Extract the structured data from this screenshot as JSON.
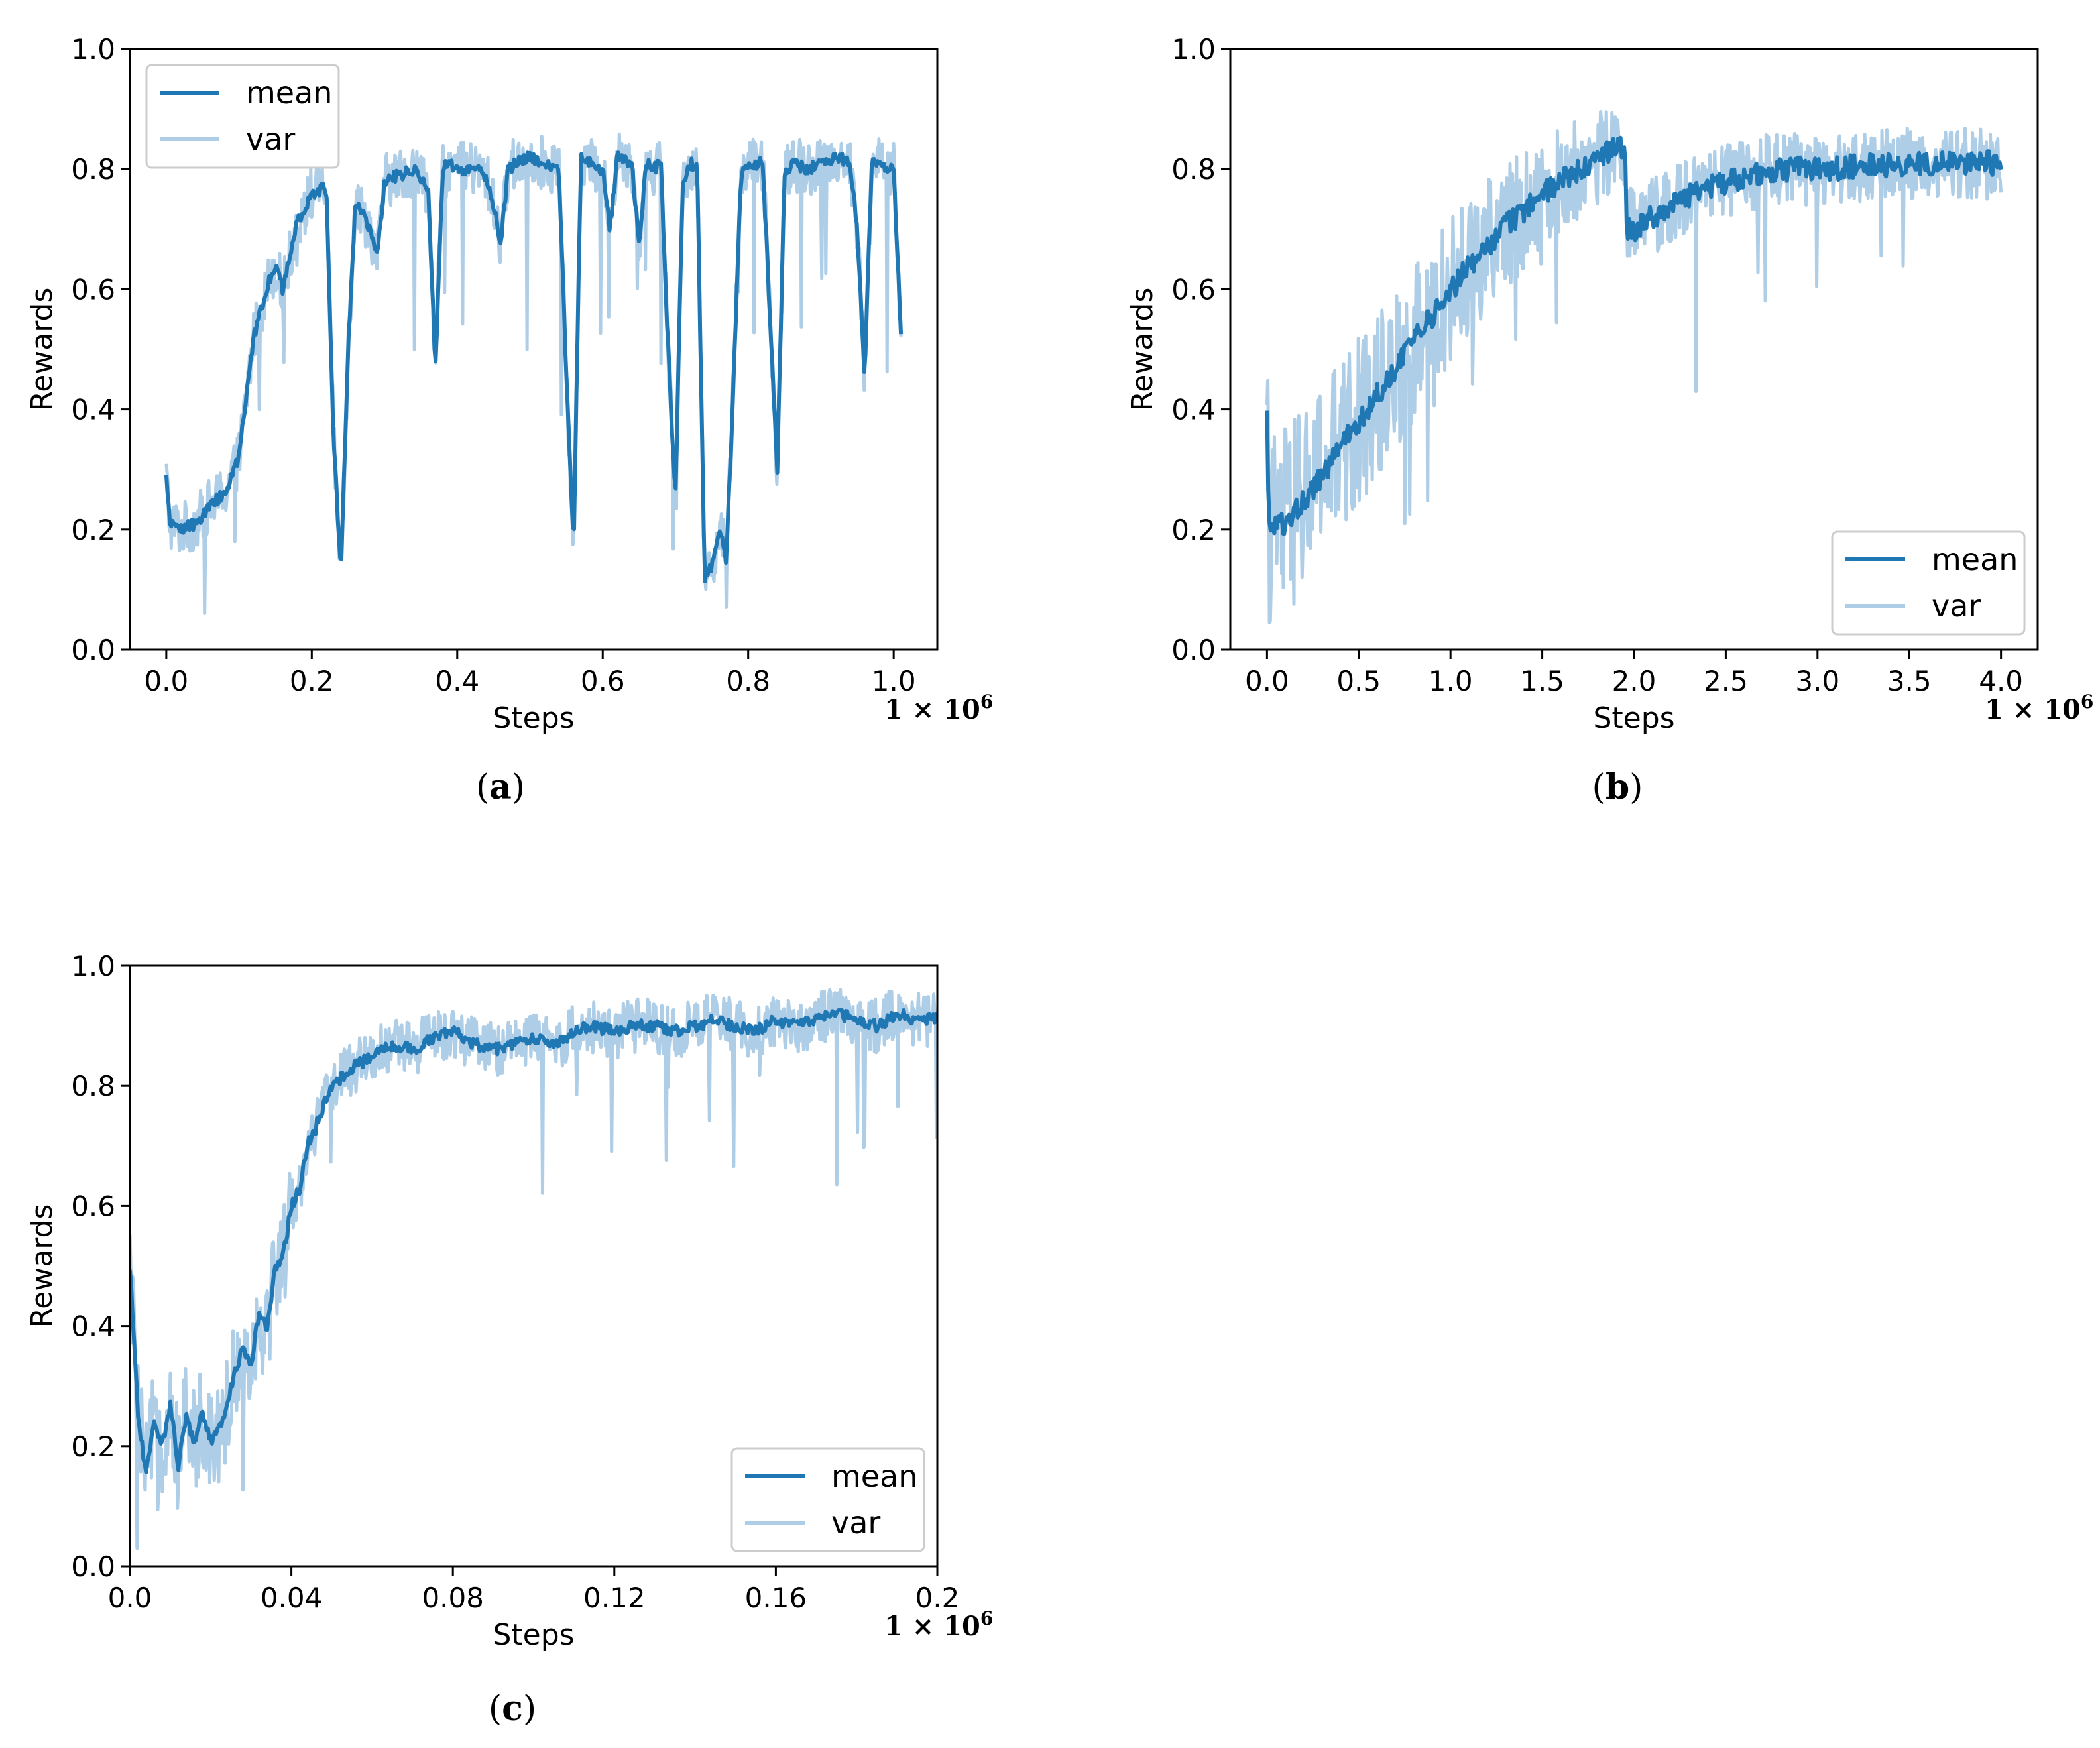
{
  "colors": {
    "mean": "#1f77b4",
    "var": "#aecde6",
    "axis": "#000000",
    "background": "#ffffff"
  },
  "chart_data": [
    {
      "id": "a",
      "type": "line",
      "caption": "a",
      "xlabel": "Steps",
      "ylabel": "Rewards",
      "x_multiplier": "1 × 10",
      "x_multiplier_exp": "6",
      "xlim": [
        -0.05,
        1.06
      ],
      "ylim": [
        0.0,
        1.0
      ],
      "xticks": [
        0.0,
        0.2,
        0.4,
        0.6,
        0.8,
        1.0
      ],
      "xtick_labels": [
        "0.0",
        "0.2",
        "0.4",
        "0.6",
        "0.8",
        "1.0"
      ],
      "yticks": [
        0.0,
        0.2,
        0.4,
        0.6,
        0.8,
        1.0
      ],
      "ytick_labels": [
        "0.0",
        "0.2",
        "0.4",
        "0.6",
        "0.8",
        "1.0"
      ],
      "legend": {
        "entries": [
          "mean",
          "var"
        ],
        "placement": "upper-left"
      },
      "series": [
        {
          "name": "mean",
          "x": [
            0.0,
            0.005,
            0.02,
            0.04,
            0.06,
            0.08,
            0.1,
            0.12,
            0.14,
            0.15,
            0.16,
            0.18,
            0.2,
            0.22,
            0.23,
            0.24,
            0.25,
            0.26,
            0.28,
            0.29,
            0.3,
            0.32,
            0.34,
            0.36,
            0.37,
            0.38,
            0.385,
            0.4,
            0.42,
            0.44,
            0.46,
            0.47,
            0.48,
            0.5,
            0.52,
            0.54,
            0.55,
            0.56,
            0.57,
            0.58,
            0.6,
            0.61,
            0.62,
            0.64,
            0.65,
            0.66,
            0.67,
            0.68,
            0.69,
            0.7,
            0.71,
            0.72,
            0.73,
            0.74,
            0.75,
            0.76,
            0.77,
            0.78,
            0.79,
            0.8,
            0.82,
            0.84,
            0.85,
            0.86,
            0.88,
            0.9,
            0.92,
            0.94,
            0.95,
            0.96,
            0.97,
            0.98,
            1.0,
            1.01
          ],
          "y": [
            0.29,
            0.21,
            0.2,
            0.21,
            0.24,
            0.26,
            0.32,
            0.52,
            0.61,
            0.64,
            0.6,
            0.71,
            0.76,
            0.77,
            0.35,
            0.13,
            0.5,
            0.75,
            0.7,
            0.65,
            0.78,
            0.79,
            0.8,
            0.77,
            0.47,
            0.8,
            0.81,
            0.8,
            0.8,
            0.79,
            0.68,
            0.8,
            0.81,
            0.82,
            0.81,
            0.8,
            0.45,
            0.17,
            0.82,
            0.81,
            0.8,
            0.7,
            0.82,
            0.81,
            0.67,
            0.81,
            0.8,
            0.81,
            0.5,
            0.25,
            0.78,
            0.81,
            0.8,
            0.12,
            0.14,
            0.2,
            0.15,
            0.45,
            0.79,
            0.81,
            0.81,
            0.3,
            0.79,
            0.81,
            0.8,
            0.81,
            0.82,
            0.81,
            0.7,
            0.46,
            0.81,
            0.81,
            0.8,
            0.53
          ]
        }
      ]
    },
    {
      "id": "b",
      "type": "line",
      "caption": "b",
      "xlabel": "Steps",
      "ylabel": "Rewards",
      "x_multiplier": "1 × 10",
      "x_multiplier_exp": "6",
      "xlim": [
        -0.2,
        4.2
      ],
      "ylim": [
        0.0,
        1.0
      ],
      "xticks": [
        0.0,
        0.5,
        1.0,
        1.5,
        2.0,
        2.5,
        3.0,
        3.5,
        4.0
      ],
      "xtick_labels": [
        "0.0",
        "0.5",
        "1.0",
        "1.5",
        "2.0",
        "2.5",
        "3.0",
        "3.5",
        "4.0"
      ],
      "yticks": [
        0.0,
        0.2,
        0.4,
        0.6,
        0.8,
        1.0
      ],
      "ytick_labels": [
        "0.0",
        "0.2",
        "0.4",
        "0.6",
        "0.8",
        "1.0"
      ],
      "legend": {
        "entries": [
          "mean",
          "var"
        ],
        "placement": "lower-right"
      },
      "series": [
        {
          "name": "mean",
          "x": [
            0.0,
            0.01,
            0.1,
            0.25,
            0.5,
            0.75,
            1.0,
            1.25,
            1.5,
            1.75,
            1.95,
            1.96,
            2.0,
            2.25,
            2.5,
            2.75,
            3.0,
            3.5,
            4.0
          ],
          "y": [
            0.38,
            0.2,
            0.21,
            0.27,
            0.38,
            0.49,
            0.6,
            0.69,
            0.76,
            0.81,
            0.84,
            0.7,
            0.7,
            0.75,
            0.78,
            0.8,
            0.8,
            0.81,
            0.81
          ]
        }
      ]
    },
    {
      "id": "c",
      "type": "line",
      "caption": "c",
      "xlabel": "Steps",
      "ylabel": "Rewards",
      "x_multiplier": "1 × 10",
      "x_multiplier_exp": "6",
      "xlim": [
        0.0,
        0.2
      ],
      "ylim": [
        0.0,
        1.0
      ],
      "xticks": [
        0.0,
        0.04,
        0.08,
        0.12,
        0.16,
        0.2
      ],
      "xtick_labels": [
        "0.0",
        "0.04",
        "0.08",
        "0.12",
        "0.16",
        "0.2"
      ],
      "yticks": [
        0.0,
        0.2,
        0.4,
        0.6,
        0.8,
        1.0
      ],
      "ytick_labels": [
        "0.0",
        "0.2",
        "0.4",
        "0.6",
        "0.8",
        "1.0"
      ],
      "legend": {
        "entries": [
          "mean",
          "var"
        ],
        "placement": "lower-right"
      },
      "series": [
        {
          "name": "mean",
          "x": [
            0.0,
            0.002,
            0.004,
            0.006,
            0.008,
            0.01,
            0.012,
            0.014,
            0.016,
            0.018,
            0.02,
            0.022,
            0.024,
            0.026,
            0.028,
            0.03,
            0.032,
            0.034,
            0.036,
            0.038,
            0.04,
            0.042,
            0.044,
            0.046,
            0.048,
            0.05,
            0.055,
            0.06,
            0.065,
            0.07,
            0.075,
            0.08,
            0.085,
            0.09,
            0.095,
            0.1,
            0.105,
            0.11,
            0.115,
            0.12,
            0.125,
            0.13,
            0.135,
            0.14,
            0.145,
            0.15,
            0.155,
            0.16,
            0.165,
            0.17,
            0.175,
            0.18,
            0.185,
            0.19,
            0.195,
            0.2
          ],
          "y": [
            0.5,
            0.25,
            0.15,
            0.24,
            0.2,
            0.27,
            0.17,
            0.25,
            0.2,
            0.26,
            0.21,
            0.23,
            0.26,
            0.33,
            0.36,
            0.34,
            0.42,
            0.4,
            0.5,
            0.52,
            0.6,
            0.63,
            0.7,
            0.73,
            0.77,
            0.8,
            0.83,
            0.85,
            0.87,
            0.86,
            0.88,
            0.89,
            0.87,
            0.86,
            0.87,
            0.88,
            0.87,
            0.89,
            0.9,
            0.89,
            0.9,
            0.9,
            0.89,
            0.9,
            0.91,
            0.9,
            0.89,
            0.91,
            0.9,
            0.91,
            0.92,
            0.91,
            0.9,
            0.92,
            0.91,
            0.91
          ]
        }
      ]
    }
  ]
}
